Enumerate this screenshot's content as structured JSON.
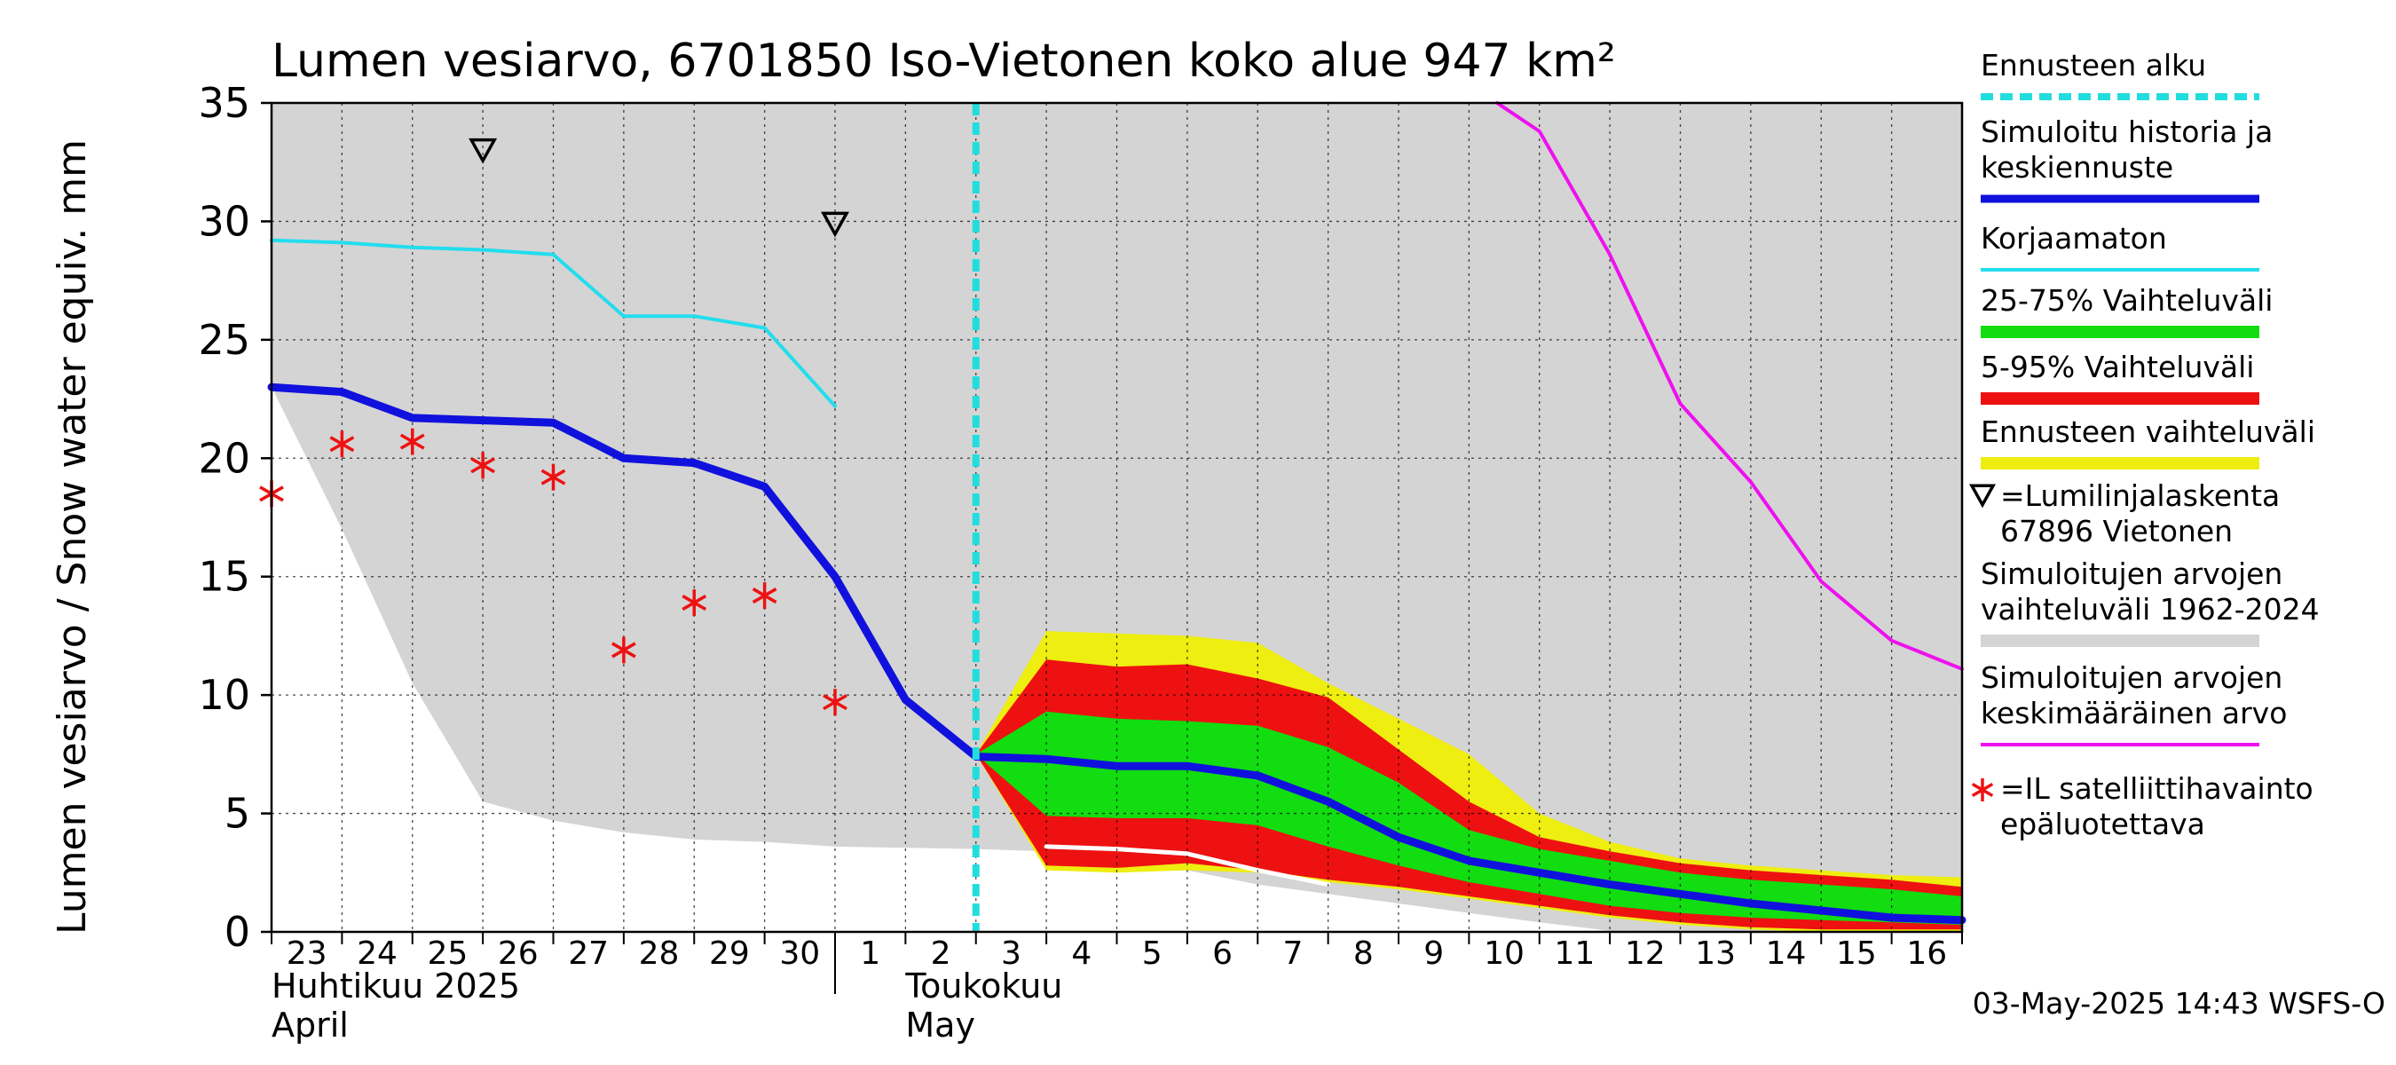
{
  "title": "Lumen vesiarvo, 6701850 Iso-Vietonen koko alue 947 km²",
  "footer": "03-May-2025 14:43 WSFS-O",
  "y_axis_label": "Lumen vesiarvo / Snow water equiv.    mm",
  "month_labels": [
    {
      "fi": "Huhtikuu  2025",
      "en": "April"
    },
    {
      "fi": "Toukokuu",
      "en": "May"
    }
  ],
  "legend": [
    {
      "key": "forecast_start",
      "label_lines": [
        "Ennusteen alku"
      ],
      "color": "#22dddd",
      "style": "dashed"
    },
    {
      "key": "simulated",
      "label_lines": [
        "Simuloitu historia ja",
        "keskiennuste"
      ],
      "color": "#1111dd",
      "style": "line"
    },
    {
      "key": "uncorrected",
      "label_lines": [
        "Korjaamaton"
      ],
      "color": "#22ddee",
      "style": "line"
    },
    {
      "key": "p25_75",
      "label_lines": [
        "25-75% Vaihteluväli"
      ],
      "color": "#11dd11",
      "style": "band"
    },
    {
      "key": "p5_95",
      "label_lines": [
        "5-95% Vaihteluväli"
      ],
      "color": "#ee1111",
      "style": "band"
    },
    {
      "key": "forecast_range",
      "label_lines": [
        "Ennusteen vaihteluväli"
      ],
      "color": "#eeee11",
      "style": "band"
    },
    {
      "key": "snow_course",
      "label_lines": [
        "=Lumilinjalaskenta",
        "67896 Vietonen"
      ],
      "color": "#000000",
      "style": "triangle"
    },
    {
      "key": "sim_range",
      "label_lines": [
        "Simuloitujen arvojen",
        "vaihteluväli 1962-2024"
      ],
      "color": "#d4d4d4",
      "style": "band"
    },
    {
      "key": "sim_mean",
      "label_lines": [
        "Simuloitujen arvojen",
        "keskimääräinen arvo"
      ],
      "color": "#ee11ee",
      "style": "line"
    },
    {
      "key": "satellite",
      "label_lines": [
        "=IL satelliittihavainto",
        "epäluotettava"
      ],
      "color": "#ee1111",
      "style": "star"
    }
  ],
  "chart_data": {
    "type": "line",
    "title": "Lumen vesiarvo, 6701850 Iso-Vietonen koko alue 947 km²",
    "ylabel": "Lumen vesiarvo / Snow water equiv.    mm",
    "ylim": [
      0,
      35
    ],
    "yticks": [
      0,
      5,
      10,
      15,
      20,
      25,
      30,
      35
    ],
    "x_unit": "day index (0 = 23 April 2025)",
    "xlim": [
      0,
      24
    ],
    "x_tick_labels": [
      "23",
      "24",
      "25",
      "26",
      "27",
      "28",
      "29",
      "30",
      "1",
      "2",
      "3",
      "4",
      "5",
      "6",
      "7",
      "8",
      "9",
      "10",
      "11",
      "12",
      "13",
      "14",
      "15",
      "16"
    ],
    "forecast_start_x": 10,
    "grid": true,
    "series": {
      "sim_range_upper": [
        [
          0,
          35
        ],
        [
          24,
          35
        ]
      ],
      "sim_range_lower": [
        [
          0,
          23
        ],
        [
          1,
          17
        ],
        [
          2,
          10.5
        ],
        [
          3,
          5.5
        ],
        [
          4,
          4.7
        ],
        [
          5,
          4.2
        ],
        [
          6,
          3.9
        ],
        [
          7,
          3.8
        ],
        [
          8,
          3.6
        ],
        [
          10,
          3.5
        ],
        [
          11,
          3.4
        ],
        [
          12,
          3.2
        ],
        [
          13,
          2.6
        ],
        [
          14,
          2.0
        ],
        [
          15,
          1.6
        ],
        [
          16,
          1.2
        ],
        [
          17,
          0.8
        ],
        [
          18,
          0.4
        ],
        [
          19,
          0.05
        ],
        [
          24,
          0
        ]
      ],
      "forecast_range_upper": [
        [
          10,
          7.5
        ],
        [
          11,
          12.7
        ],
        [
          12,
          12.6
        ],
        [
          13,
          12.5
        ],
        [
          14,
          12.2
        ],
        [
          15,
          10.5
        ],
        [
          16,
          9.0
        ],
        [
          17,
          7.5
        ],
        [
          18,
          5.0
        ],
        [
          19,
          3.8
        ],
        [
          20,
          3.1
        ],
        [
          21,
          2.8
        ],
        [
          22,
          2.6
        ],
        [
          23,
          2.4
        ],
        [
          24,
          2.3
        ]
      ],
      "forecast_range_lower": [
        [
          10,
          7.5
        ],
        [
          11,
          2.6
        ],
        [
          12,
          2.5
        ],
        [
          13,
          2.6
        ],
        [
          14,
          2.5
        ],
        [
          15,
          2.1
        ],
        [
          16,
          1.8
        ],
        [
          17,
          1.4
        ],
        [
          18,
          1.0
        ],
        [
          19,
          0.6
        ],
        [
          20,
          0.3
        ],
        [
          21,
          0.1
        ],
        [
          22,
          0.0
        ],
        [
          23,
          0.0
        ],
        [
          24,
          0.0
        ]
      ],
      "p5_95_upper": [
        [
          10,
          7.5
        ],
        [
          11,
          11.5
        ],
        [
          12,
          11.2
        ],
        [
          13,
          11.3
        ],
        [
          14,
          10.7
        ],
        [
          15,
          9.9
        ],
        [
          16,
          7.7
        ],
        [
          17,
          5.5
        ],
        [
          18,
          4.0
        ],
        [
          19,
          3.4
        ],
        [
          20,
          2.9
        ],
        [
          21,
          2.6
        ],
        [
          22,
          2.4
        ],
        [
          23,
          2.2
        ],
        [
          24,
          1.9
        ]
      ],
      "p5_95_lower": [
        [
          10,
          7.5
        ],
        [
          11,
          2.8
        ],
        [
          12,
          2.7
        ],
        [
          13,
          2.9
        ],
        [
          14,
          2.6
        ],
        [
          15,
          2.2
        ],
        [
          16,
          1.9
        ],
        [
          17,
          1.5
        ],
        [
          18,
          1.1
        ],
        [
          19,
          0.7
        ],
        [
          20,
          0.4
        ],
        [
          21,
          0.2
        ],
        [
          22,
          0.1
        ],
        [
          23,
          0.1
        ],
        [
          24,
          0.1
        ]
      ],
      "p25_75_upper": [
        [
          10,
          7.5
        ],
        [
          11,
          9.3
        ],
        [
          12,
          9.0
        ],
        [
          13,
          8.9
        ],
        [
          14,
          8.7
        ],
        [
          15,
          7.8
        ],
        [
          16,
          6.3
        ],
        [
          17,
          4.3
        ],
        [
          18,
          3.5
        ],
        [
          19,
          3.0
        ],
        [
          20,
          2.5
        ],
        [
          21,
          2.2
        ],
        [
          22,
          2.0
        ],
        [
          23,
          1.8
        ],
        [
          24,
          1.5
        ]
      ],
      "p25_75_lower": [
        [
          10,
          7.5
        ],
        [
          11,
          4.9
        ],
        [
          12,
          4.8
        ],
        [
          13,
          4.8
        ],
        [
          14,
          4.5
        ],
        [
          15,
          3.6
        ],
        [
          16,
          2.8
        ],
        [
          17,
          2.1
        ],
        [
          18,
          1.6
        ],
        [
          19,
          1.1
        ],
        [
          20,
          0.8
        ],
        [
          21,
          0.6
        ],
        [
          22,
          0.5
        ],
        [
          23,
          0.4
        ],
        [
          24,
          0.3
        ]
      ],
      "simulated": [
        [
          0,
          23.0
        ],
        [
          1,
          22.8
        ],
        [
          2,
          21.7
        ],
        [
          3,
          21.6
        ],
        [
          4,
          21.5
        ],
        [
          5,
          20.0
        ],
        [
          6,
          19.8
        ],
        [
          7,
          18.8
        ],
        [
          8,
          15.0
        ],
        [
          9,
          9.8
        ],
        [
          10,
          7.4
        ],
        [
          11,
          7.3
        ],
        [
          12,
          7.0
        ],
        [
          13,
          7.0
        ],
        [
          14,
          6.6
        ],
        [
          15,
          5.5
        ],
        [
          16,
          4.0
        ],
        [
          17,
          3.0
        ],
        [
          18,
          2.5
        ],
        [
          19,
          2.0
        ],
        [
          20,
          1.6
        ],
        [
          21,
          1.2
        ],
        [
          22,
          0.9
        ],
        [
          23,
          0.6
        ],
        [
          24,
          0.5
        ]
      ],
      "uncorrected": [
        [
          0,
          29.2
        ],
        [
          1,
          29.1
        ],
        [
          2,
          28.9
        ],
        [
          3,
          28.8
        ],
        [
          4,
          28.6
        ],
        [
          5,
          26.0
        ],
        [
          6,
          26.0
        ],
        [
          7,
          25.5
        ],
        [
          8,
          22.2
        ]
      ],
      "sim_mean": [
        [
          17.4,
          35
        ],
        [
          18,
          33.8
        ],
        [
          19,
          28.6
        ],
        [
          20,
          22.3
        ],
        [
          21,
          19.0
        ],
        [
          22,
          14.8
        ],
        [
          23,
          12.3
        ],
        [
          24,
          11.1
        ]
      ],
      "white_line": [
        [
          11,
          3.6
        ],
        [
          12,
          3.5
        ],
        [
          13,
          3.3
        ],
        [
          14,
          2.6
        ],
        [
          15,
          2.0
        ]
      ],
      "satellite": [
        [
          0,
          18.5
        ],
        [
          1,
          20.6
        ],
        [
          2,
          20.7
        ],
        [
          3,
          19.7
        ],
        [
          4,
          19.2
        ],
        [
          5,
          11.9
        ],
        [
          6,
          13.9
        ],
        [
          7,
          14.2
        ],
        [
          8,
          9.7
        ]
      ],
      "snow_course": [
        [
          3,
          33.0
        ],
        [
          8,
          29.9
        ]
      ]
    }
  }
}
